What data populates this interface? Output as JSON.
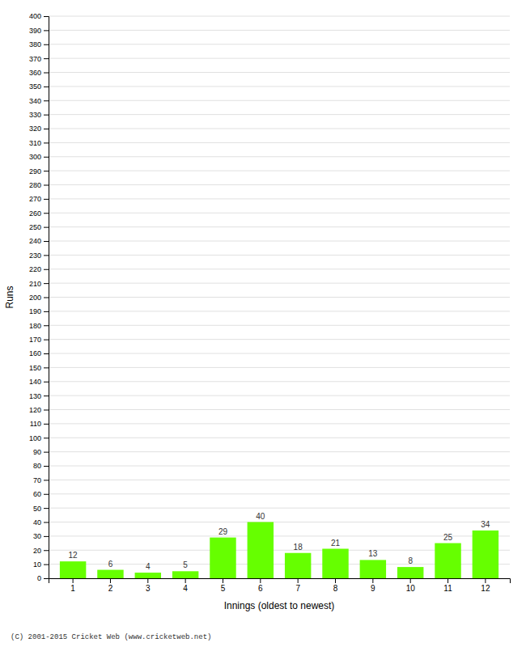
{
  "chart_data": {
    "type": "bar",
    "xlabel": "Innings (oldest to newest)",
    "ylabel": "Runs",
    "categories": [
      1,
      2,
      3,
      4,
      5,
      6,
      7,
      8,
      9,
      10,
      11,
      12
    ],
    "values": [
      12,
      6,
      4,
      5,
      29,
      40,
      18,
      21,
      13,
      8,
      25,
      34
    ],
    "color": "#66ff00",
    "ylim": [
      0,
      400
    ],
    "yticks": [
      0,
      10,
      20,
      30,
      40,
      50,
      60,
      70,
      80,
      90,
      100,
      110,
      120,
      130,
      140,
      150,
      160,
      170,
      180,
      190,
      200,
      210,
      220,
      230,
      240,
      250,
      260,
      270,
      280,
      290,
      300,
      310,
      320,
      330,
      340,
      350,
      360,
      370,
      380,
      390,
      400
    ],
    "grid": true,
    "data_labels": true,
    "annotations": [
      "(C) 2001-2015 Cricket Web (www.cricketweb.net)"
    ]
  }
}
